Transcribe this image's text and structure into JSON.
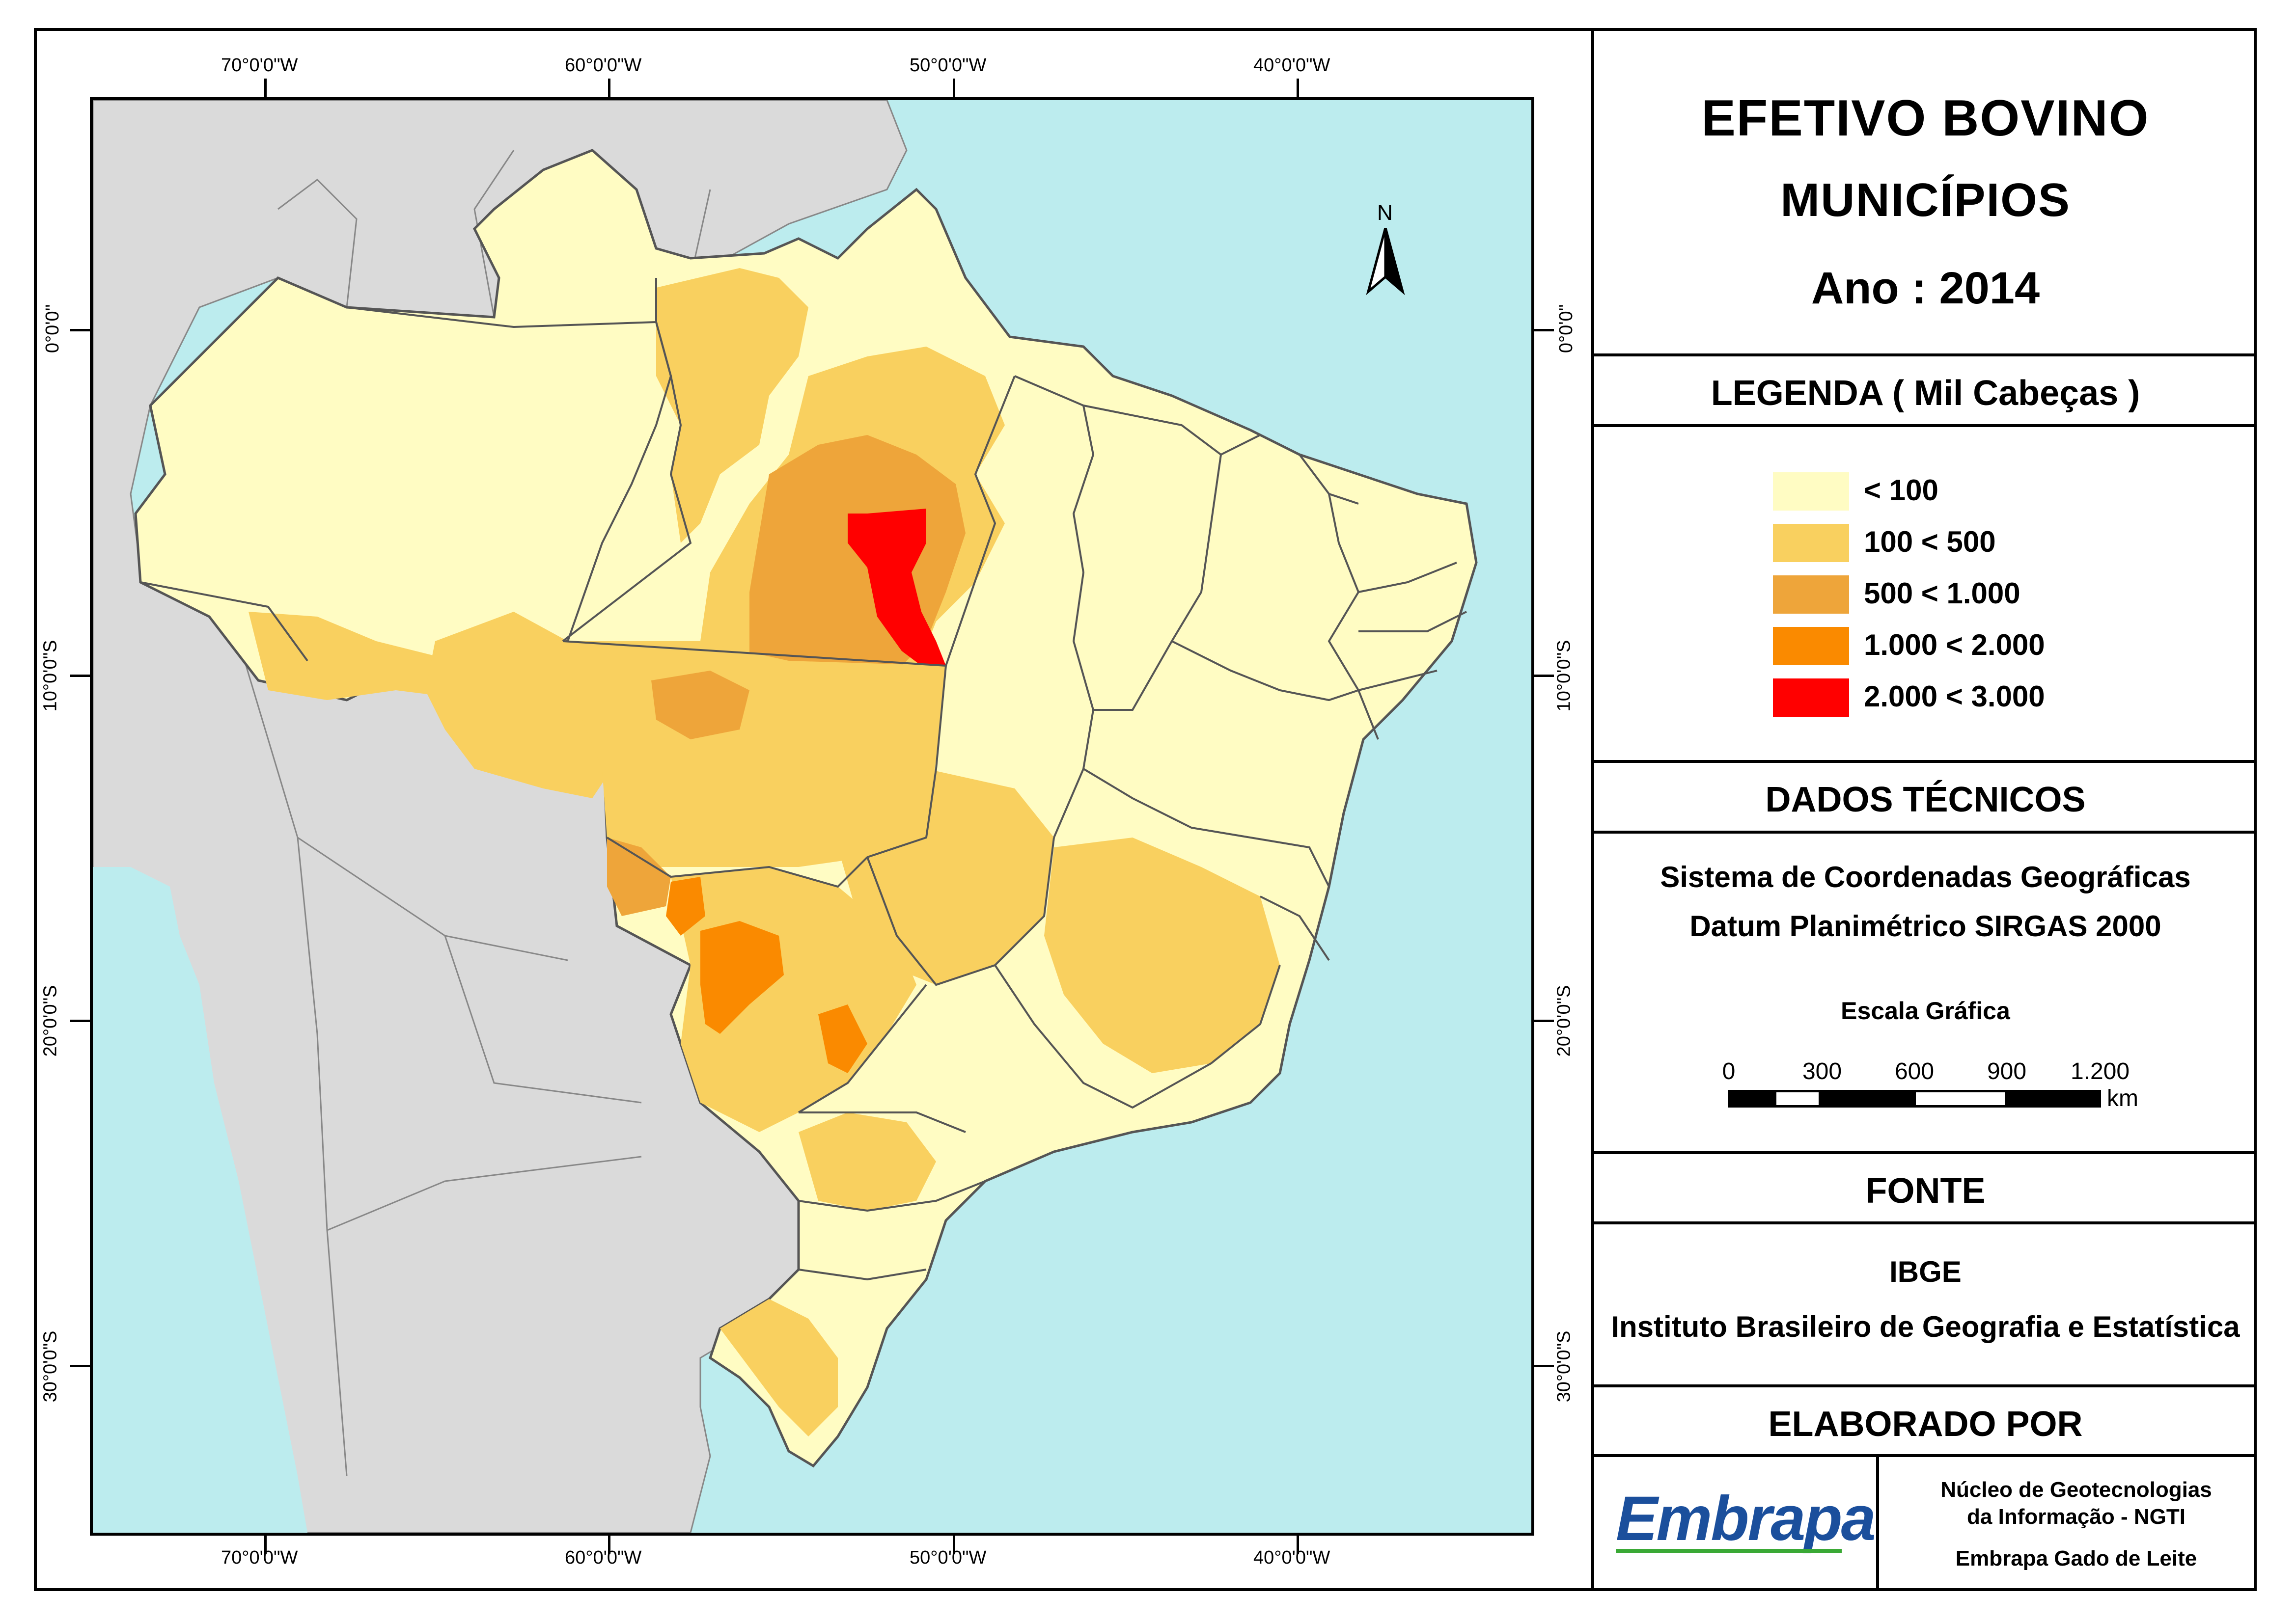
{
  "title": {
    "line1": "EFETIVO BOVINO",
    "line2": "MUNICÍPIOS",
    "line3": "Ano : 2014"
  },
  "legend": {
    "heading": "LEGENDA ( Mil Cabeças )",
    "classes": [
      {
        "label": "< 100",
        "color": "#fffcc3"
      },
      {
        "label": "100 < 500",
        "color": "#f9d05f"
      },
      {
        "label": "500 < 1.000",
        "color": "#eea53a"
      },
      {
        "label": "1.000 < 2.000",
        "color": "#fa8a00"
      },
      {
        "label": "2.000 < 3.000",
        "color": "#ff0000"
      }
    ]
  },
  "technical": {
    "heading": "DADOS TÉCNICOS",
    "line1": "Sistema de Coordenadas Geográficas",
    "line2": "Datum Planimétrico SIRGAS 2000",
    "scale_title": "Escala Gráfica",
    "scale_labels": [
      "0",
      "300",
      "600",
      "900",
      "1.200"
    ],
    "scale_unit": "km"
  },
  "source": {
    "heading": "FONTE",
    "line1": "IBGE",
    "line2": "Instituto Brasileiro de Geografia e Estatística"
  },
  "credits": {
    "heading": "ELABORADO POR",
    "logo_text": "Embrapa",
    "line1": "Núcleo de Geotecnologias",
    "line2": "da Informação - NGTI",
    "line3": "Embrapa Gado de Leite"
  },
  "map": {
    "north_label": "N",
    "longitude_labels": [
      "70°0'0\"W",
      "60°0'0\"W",
      "50°0'0\"W",
      "40°0'0\"W"
    ],
    "latitude_labels": [
      "0°0'0\"",
      "10°0'0\"S",
      "20°0'0\"S",
      "30°0'0\"S"
    ],
    "colors": {
      "ocean": "#bcecee",
      "neighbors": "#dadada",
      "border": "#555555"
    }
  }
}
